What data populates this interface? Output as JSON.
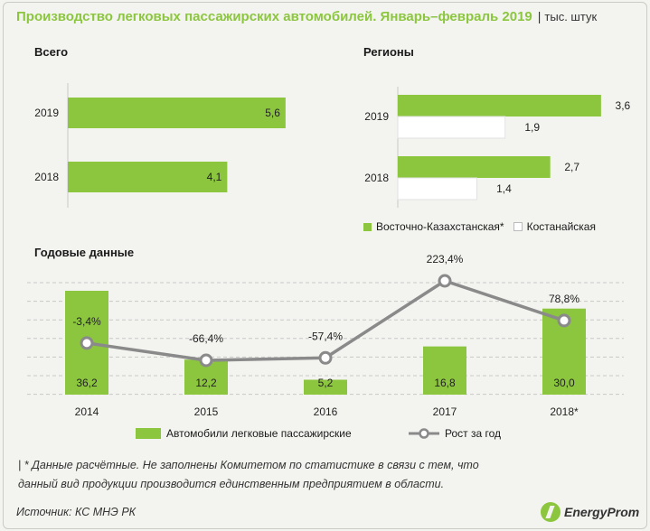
{
  "header": {
    "title": "Производство легковых пассажирских автомобилей. Январь–февраль 2019",
    "separator": "|",
    "unit": "тыс. штук"
  },
  "colors": {
    "green": "#8cc63f",
    "white": "#ffffff",
    "line": "#8a8a8a",
    "grid": "#c8c8c8"
  },
  "chart_data": [
    {
      "type": "bar",
      "orientation": "horizontal",
      "title": "Всего",
      "categories": [
        "2019",
        "2018"
      ],
      "values": [
        5.6,
        4.1
      ],
      "value_labels": [
        "5,6",
        "4,1"
      ],
      "xlim": [
        0,
        6.3
      ],
      "grid": false
    },
    {
      "type": "bar",
      "orientation": "horizontal",
      "title": "Регионы",
      "categories": [
        "2019",
        "2018"
      ],
      "series": [
        {
          "name": "Восточно-Казахстанская*",
          "color": "#8cc63f",
          "values": [
            3.6,
            2.7
          ],
          "value_labels": [
            "3,6",
            "2,7"
          ]
        },
        {
          "name": "Костанайская",
          "color": "#ffffff",
          "values": [
            1.9,
            1.4
          ],
          "value_labels": [
            "1,9",
            "1,4"
          ]
        }
      ],
      "xlim": [
        0,
        3.65
      ],
      "legend": "bottom-right",
      "grid": false
    },
    {
      "type": "bar",
      "title": "Годовые данные",
      "categories": [
        "2014",
        "2015",
        "2016",
        "2017",
        "2018*"
      ],
      "series": [
        {
          "name": "Автомобили легковые пассажирские",
          "kind": "bar",
          "color": "#8cc63f",
          "values": [
            36.2,
            12.2,
            5.2,
            16.8,
            30.0
          ],
          "value_labels": [
            "36,2",
            "12,2",
            "5,2",
            "16,8",
            "30,0"
          ]
        },
        {
          "name": "Рост за год",
          "kind": "line",
          "color": "#8a8a8a",
          "values": [
            -3.4,
            -66.4,
            -57.4,
            223.4,
            78.8
          ],
          "value_labels": [
            "-3,4%",
            "-66,4%",
            "-57,4%",
            "223,4%",
            "78,8%"
          ]
        }
      ],
      "bar_ylim": [
        0,
        36.2
      ],
      "line_ylim": [
        -66.4,
        223.4
      ],
      "legend": "bottom",
      "grid": true
    }
  ],
  "footnote": {
    "marker": "|",
    "line1": "* Данные расчётные. Не заполнены Комитетом по статистике в связи с тем, что",
    "line2": "данный вид продукции производится единственным предприятием в области."
  },
  "source": "Источник: КС МНЭ РК",
  "logo": {
    "text": "EnergyProm",
    "icon": "energyprom-logo-icon"
  }
}
